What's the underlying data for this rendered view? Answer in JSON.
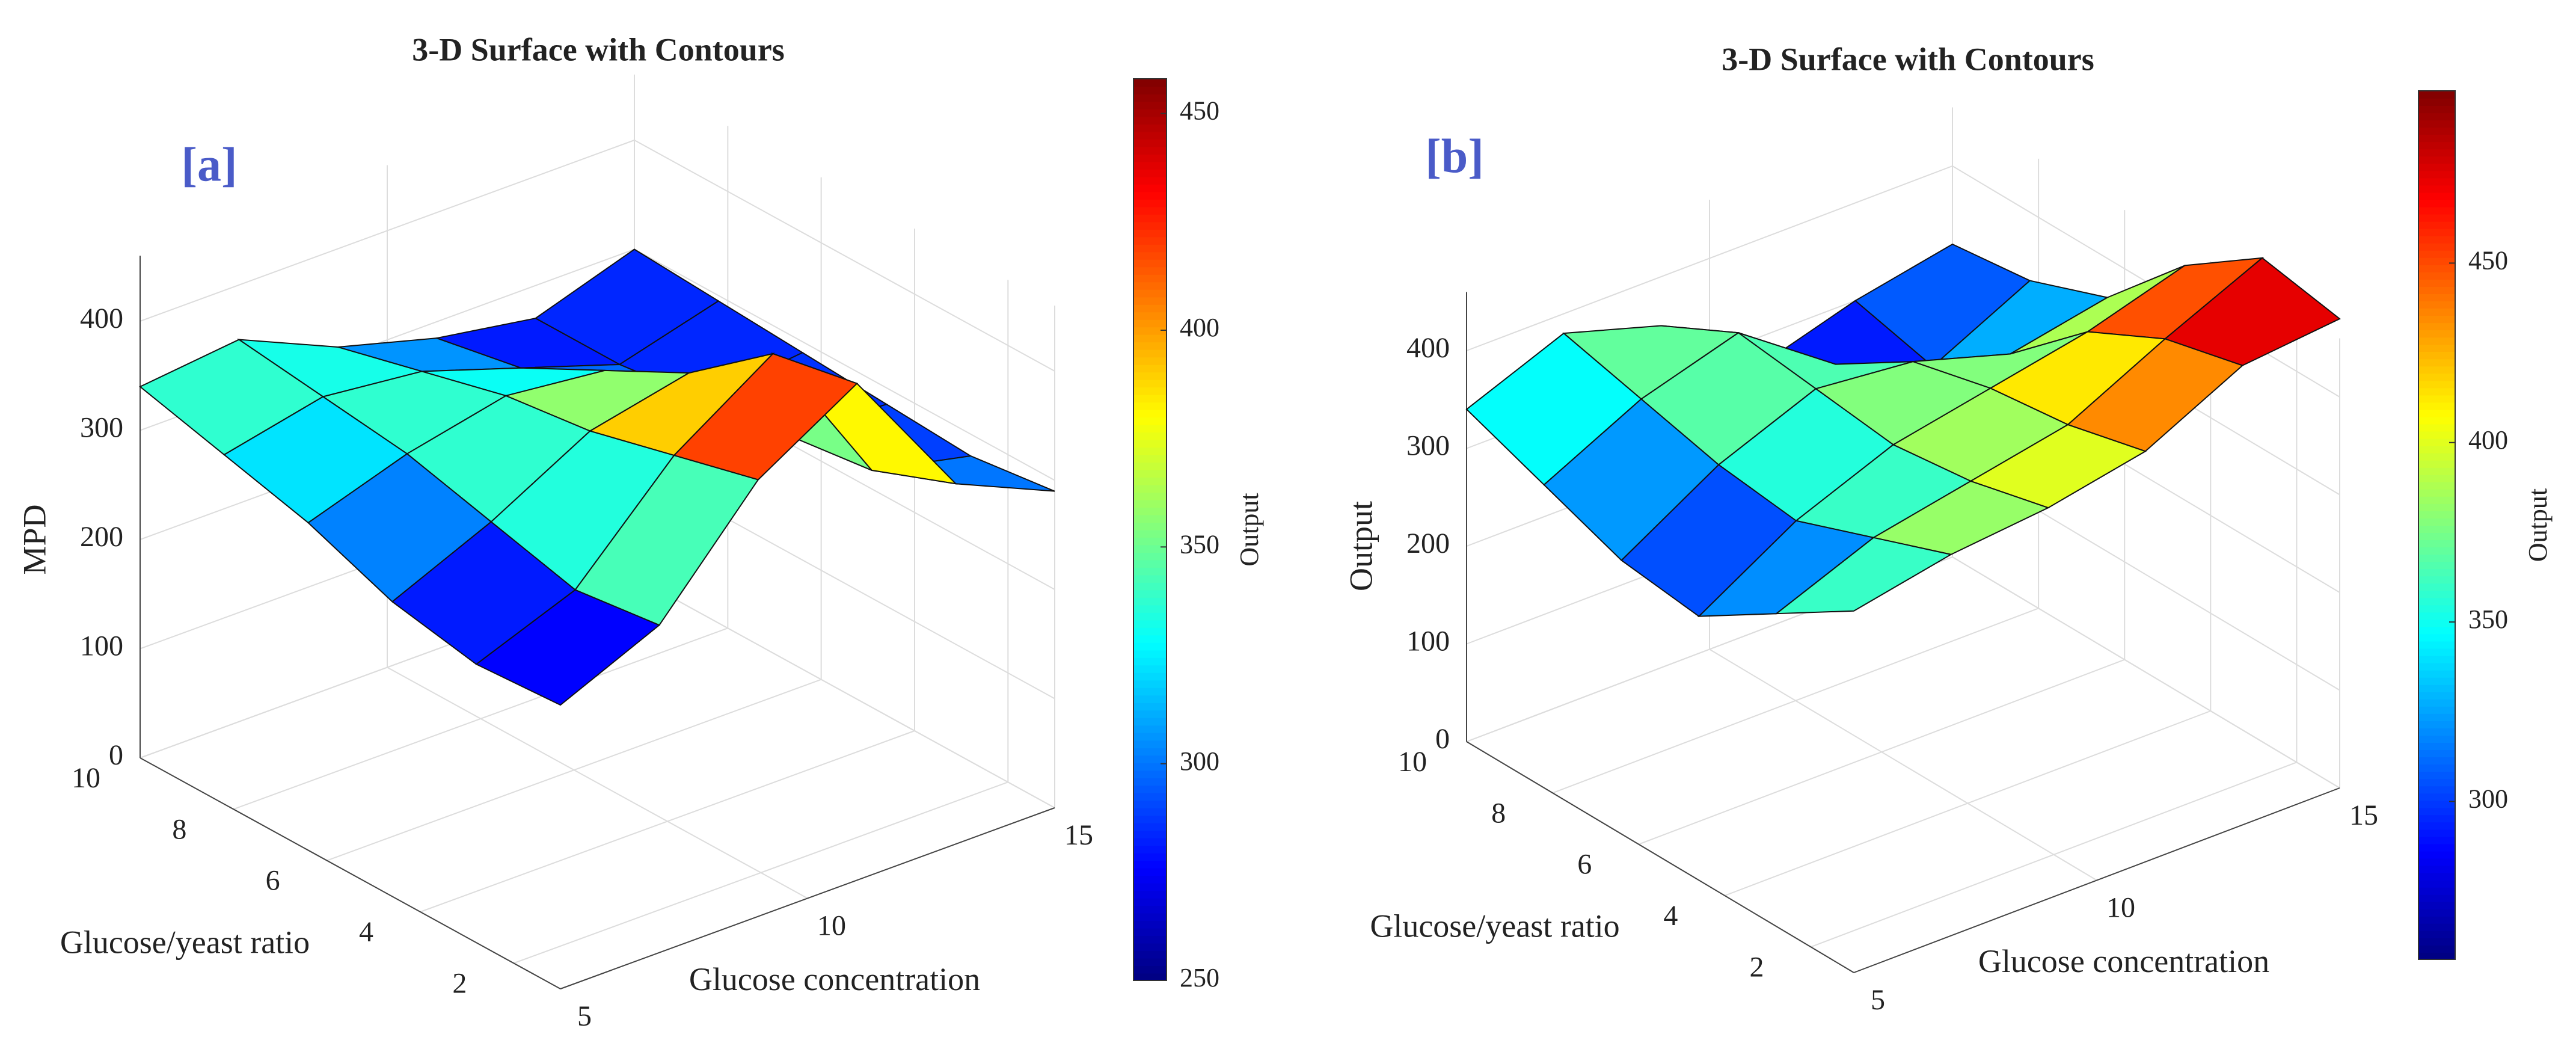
{
  "chart_data": [
    {
      "type": "surface",
      "title": "3-D Surface with Contours",
      "panel_label": "[a]",
      "xlabel": "Glucose concentration",
      "ylabel": "Glucose/yeast ratio",
      "zlabel": "MPD",
      "colorbar_label": "Output",
      "colormap": "jet",
      "x": [
        5,
        7,
        9,
        11,
        13,
        15
      ],
      "y": [
        1,
        2.8,
        4.6,
        6.4,
        8.2,
        10
      ],
      "z": [
        [
          260,
          300,
          400,
          455,
          330,
          290
        ],
        [
          255,
          290,
          380,
          440,
          300,
          280
        ],
        [
          270,
          310,
          360,
          380,
          290,
          285
        ],
        [
          300,
          330,
          350,
          340,
          280,
          290
        ],
        [
          320,
          340,
          330,
          300,
          270,
          295
        ],
        [
          340,
          350,
          310,
          285,
          270,
          300
        ]
      ],
      "xlim": [
        5,
        15
      ],
      "xticks": [
        5,
        10,
        15
      ],
      "ylim": [
        1,
        10
      ],
      "yticks": [
        2,
        4,
        6,
        8,
        10
      ],
      "zlim": [
        0,
        460
      ],
      "zticks": [
        0,
        100,
        200,
        300,
        400
      ],
      "clim": [
        250,
        458
      ],
      "cticks": [
        250,
        300,
        350,
        400,
        450
      ],
      "grid": true
    },
    {
      "type": "surface",
      "title": "3-D Surface with Contours",
      "panel_label": "[b]",
      "xlabel": "Glucose concentration",
      "ylabel": "Glucose/yeast ratio",
      "zlabel": "Output",
      "colorbar_label": "Output",
      "colormap": "jet",
      "x": [
        5,
        7,
        9,
        11,
        13,
        15
      ],
      "y": [
        1,
        2.8,
        4.6,
        6.4,
        8.2,
        10
      ],
      "z": [
        [
          370,
          390,
          400,
          420,
          470,
          480
        ],
        [
          320,
          360,
          380,
          400,
          450,
          495
        ],
        [
          270,
          330,
          370,
          390,
          410,
          440
        ],
        [
          280,
          340,
          380,
          370,
          340,
          360
        ],
        [
          310,
          360,
          390,
          320,
          280,
          330
        ],
        [
          340,
          380,
          350,
          270,
          300,
          320
        ]
      ],
      "xlim": [
        5,
        15
      ],
      "xticks": [
        5,
        10,
        15
      ],
      "ylim": [
        1,
        10
      ],
      "yticks": [
        2,
        4,
        6,
        8,
        10
      ],
      "zlim": [
        0,
        460
      ],
      "zticks": [
        0,
        100,
        200,
        300,
        400
      ],
      "clim": [
        256,
        498
      ],
      "cticks": [
        300,
        350,
        400,
        450
      ],
      "grid": true
    }
  ]
}
